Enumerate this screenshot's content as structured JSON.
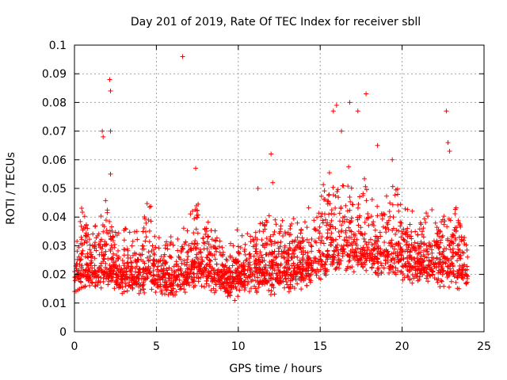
{
  "chart_data": {
    "type": "scatter",
    "title": "Day 201 of 2019, Rate Of TEC Index for receiver sbll",
    "xlabel": "GPS time / hours",
    "ylabel": "ROTI / TECUs",
    "xlim": [
      0,
      25
    ],
    "ylim": [
      0,
      0.1
    ],
    "grid": true,
    "marker": "+",
    "color": "#ff0000",
    "x_ticks": [
      0,
      5,
      10,
      15,
      20,
      25
    ],
    "x_tick_labels": [
      "0",
      "5",
      "10",
      "15",
      "20",
      "25"
    ],
    "y_ticks": [
      0,
      0.01,
      0.02,
      0.03,
      0.04,
      0.05,
      0.06,
      0.07,
      0.08,
      0.09,
      0.1
    ],
    "y_tick_labels": [
      "0",
      "0.01",
      "0.02",
      "0.03",
      "0.04",
      "0.05",
      "0.06",
      "0.07",
      "0.08",
      "0.09",
      "0.1"
    ],
    "series": [
      {
        "name": "ROTI",
        "outliers": [
          {
            "x": 6.6,
            "y": 0.096
          },
          {
            "x": 2.15,
            "y": 0.088
          },
          {
            "x": 2.2,
            "y": 0.084
          },
          {
            "x": 17.8,
            "y": 0.083
          },
          {
            "x": 22.7,
            "y": 0.077
          },
          {
            "x": 16.0,
            "y": 0.079
          },
          {
            "x": 16.8,
            "y": 0.08
          },
          {
            "x": 17.3,
            "y": 0.077
          },
          {
            "x": 15.8,
            "y": 0.077
          },
          {
            "x": 1.7,
            "y": 0.07
          },
          {
            "x": 1.75,
            "y": 0.068
          },
          {
            "x": 2.2,
            "y": 0.07
          },
          {
            "x": 12.0,
            "y": 0.062
          },
          {
            "x": 22.8,
            "y": 0.066
          },
          {
            "x": 22.9,
            "y": 0.063
          },
          {
            "x": 7.4,
            "y": 0.057
          },
          {
            "x": 19.4,
            "y": 0.06
          },
          {
            "x": 2.2,
            "y": 0.055
          },
          {
            "x": 18.5,
            "y": 0.065
          },
          {
            "x": 16.3,
            "y": 0.07
          },
          {
            "x": 11.2,
            "y": 0.05
          },
          {
            "x": 12.1,
            "y": 0.052
          }
        ],
        "envelope": [
          {
            "x": 0,
            "base": 0.018,
            "spread": 0.018
          },
          {
            "x": 0.5,
            "base": 0.02,
            "spread": 0.022
          },
          {
            "x": 1,
            "base": 0.018,
            "spread": 0.014
          },
          {
            "x": 1.6,
            "base": 0.02,
            "spread": 0.028
          },
          {
            "x": 2.2,
            "base": 0.019,
            "spread": 0.02
          },
          {
            "x": 3,
            "base": 0.018,
            "spread": 0.016
          },
          {
            "x": 4,
            "base": 0.018,
            "spread": 0.018
          },
          {
            "x": 4.5,
            "base": 0.019,
            "spread": 0.026
          },
          {
            "x": 5.5,
            "base": 0.016,
            "spread": 0.012
          },
          {
            "x": 6.5,
            "base": 0.017,
            "spread": 0.016
          },
          {
            "x": 7.5,
            "base": 0.02,
            "spread": 0.026
          },
          {
            "x": 8.5,
            "base": 0.018,
            "spread": 0.016
          },
          {
            "x": 9.5,
            "base": 0.016,
            "spread": 0.012
          },
          {
            "x": 10.5,
            "base": 0.018,
            "spread": 0.016
          },
          {
            "x": 11.5,
            "base": 0.019,
            "spread": 0.02
          },
          {
            "x": 12.5,
            "base": 0.019,
            "spread": 0.018
          },
          {
            "x": 13.5,
            "base": 0.02,
            "spread": 0.018
          },
          {
            "x": 14.5,
            "base": 0.021,
            "spread": 0.02
          },
          {
            "x": 15.5,
            "base": 0.024,
            "spread": 0.028
          },
          {
            "x": 16.5,
            "base": 0.026,
            "spread": 0.032
          },
          {
            "x": 17.5,
            "base": 0.025,
            "spread": 0.028
          },
          {
            "x": 18.5,
            "base": 0.024,
            "spread": 0.022
          },
          {
            "x": 19.5,
            "base": 0.024,
            "spread": 0.026
          },
          {
            "x": 20.5,
            "base": 0.022,
            "spread": 0.018
          },
          {
            "x": 21.5,
            "base": 0.021,
            "spread": 0.016
          },
          {
            "x": 22.5,
            "base": 0.021,
            "spread": 0.02
          },
          {
            "x": 23.5,
            "base": 0.02,
            "spread": 0.02
          },
          {
            "x": 24,
            "base": 0.019,
            "spread": 0.018
          }
        ],
        "n_points": 2600
      }
    ]
  }
}
